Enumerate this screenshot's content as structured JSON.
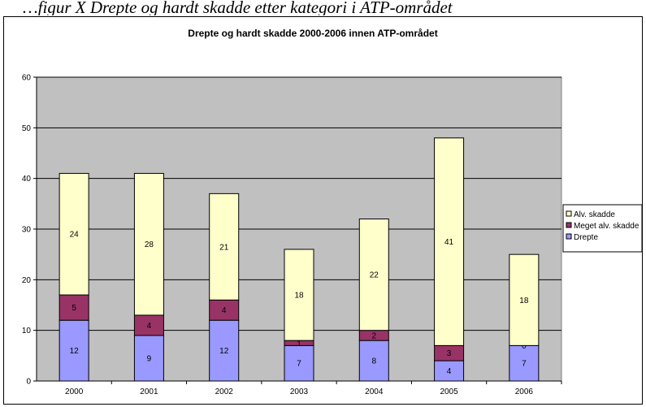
{
  "caption": "…figur X Drepte og hardt skadde etter kategori i ATP-området",
  "chart_data": {
    "type": "bar",
    "stacked": true,
    "title": "Drepte og hardt skadde 2000-2006 innen ATP-området",
    "xlabel": "",
    "ylabel": "",
    "ylim": [
      0,
      60
    ],
    "yticks": [
      0,
      10,
      20,
      30,
      40,
      50,
      60
    ],
    "grid": true,
    "legend_position": "right",
    "categories": [
      "2000",
      "2001",
      "2002",
      "2003",
      "2004",
      "2005",
      "2006"
    ],
    "series": [
      {
        "name": "Drepte",
        "values": [
          12,
          9,
          12,
          7,
          8,
          4,
          7
        ],
        "color": "#9999FF"
      },
      {
        "name": "Meget alv. skadde",
        "values": [
          5,
          4,
          4,
          1,
          2,
          3,
          0
        ],
        "color": "#993366"
      },
      {
        "name": "Alv. skadde",
        "values": [
          24,
          28,
          21,
          18,
          22,
          41,
          18
        ],
        "color": "#FFFFCC"
      }
    ],
    "legend_order": [
      "Alv. skadde",
      "Meget alv. skadde",
      "Drepte"
    ],
    "plot_background": "#C0C0C0"
  }
}
